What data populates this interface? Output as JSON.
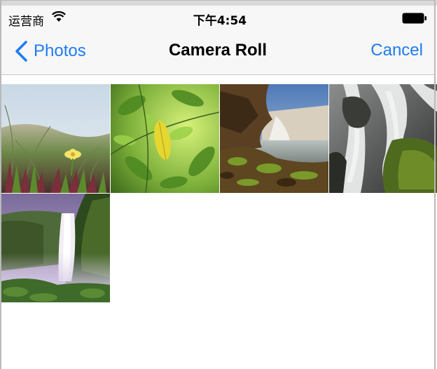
{
  "status_bar": {
    "carrier": "运营商",
    "time": "下午4:54",
    "wifi_icon": "wifi-icon",
    "battery_icon": "battery-icon"
  },
  "nav_bar": {
    "back_label": "Photos",
    "title": "Camera Roll",
    "cancel_label": "Cancel",
    "accent_color": "#1e7cf2"
  },
  "photos": [
    {
      "name": "photo-grass-flower",
      "subject": "grass with yellow flower"
    },
    {
      "name": "photo-green-leaves",
      "subject": "green leaves with yellow leaf"
    },
    {
      "name": "photo-waterfall-canyon",
      "subject": "waterfall over rocky shore"
    },
    {
      "name": "photo-waterfall-mossy",
      "subject": "long-exposure cascade over mossy rocks"
    },
    {
      "name": "photo-waterfall-cliff",
      "subject": "tall waterfall down green cliff"
    }
  ]
}
